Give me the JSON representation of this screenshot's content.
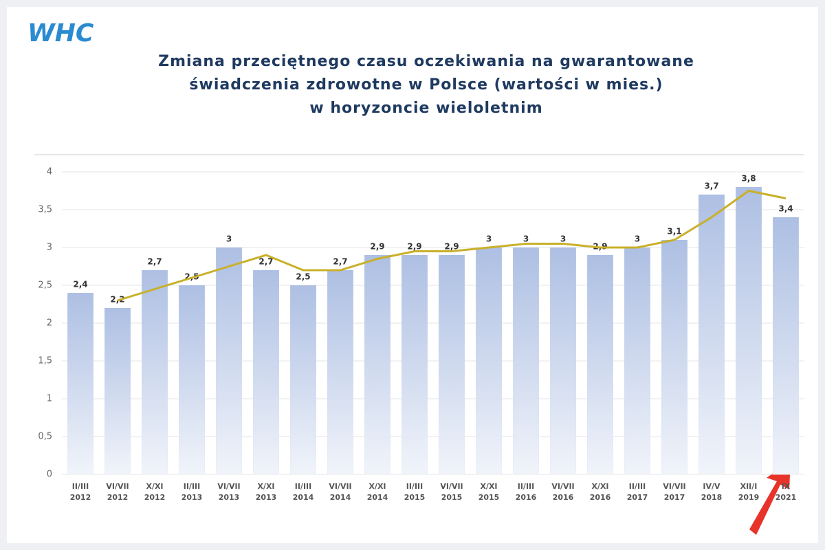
{
  "logo": "WHC",
  "chart_data": {
    "type": "bar",
    "title": [
      "Zmiana przeciętnego czasu oczekiwania na gwarantowane",
      "świadczenia zdrowotne w Polsce (wartości w mies.)",
      "w horyzoncie wieloletnim"
    ],
    "categories": [
      "II/III 2012",
      "VI/VII 2012",
      "X/XI 2012",
      "II/III 2013",
      "VI/VII 2013",
      "X/XI 2013",
      "II/III 2014",
      "VI/VII 2014",
      "X/XI 2014",
      "II/III 2015",
      "VI/VII 2015",
      "X/XI 2015",
      "II/III 2016",
      "VI/VII 2016",
      "X/XI 2016",
      "II/III 2017",
      "VI/VII 2017",
      "IV/V 2018",
      "XII/I 2019",
      "IX 2021"
    ],
    "values": [
      2.4,
      2.2,
      2.7,
      2.5,
      3,
      2.7,
      2.5,
      2.7,
      2.9,
      2.9,
      2.9,
      3,
      3,
      3,
      2.9,
      3,
      3.1,
      3.7,
      3.8,
      3.4
    ],
    "value_labels": [
      "2,4",
      "2,2",
      "2,7",
      "2,5",
      "3",
      "2,7",
      "2,5",
      "2,7",
      "2,9",
      "2,9",
      "2,9",
      "3",
      "3",
      "3",
      "2,9",
      "3",
      "3,1",
      "3,7",
      "3,8",
      "3,4"
    ],
    "color": "#9fb4de",
    "trend": {
      "color": "#c9b02a",
      "values": [
        null,
        2.3,
        2.45,
        2.6,
        2.75,
        2.9,
        2.7,
        2.7,
        2.85,
        2.95,
        2.95,
        3.0,
        3.05,
        3.05,
        3.0,
        3.0,
        3.1,
        3.4,
        3.75,
        3.65
      ]
    },
    "ylim": [
      0,
      4
    ],
    "yticks": [
      0,
      {
        "value": 0.5,
        "label": "0,5"
      },
      1,
      {
        "value": 1.5,
        "label": "1,5"
      },
      2,
      {
        "value": 2.5,
        "label": "2,5"
      },
      3,
      {
        "value": 3.5,
        "label": "3,5"
      },
      4
    ],
    "grid": true
  }
}
